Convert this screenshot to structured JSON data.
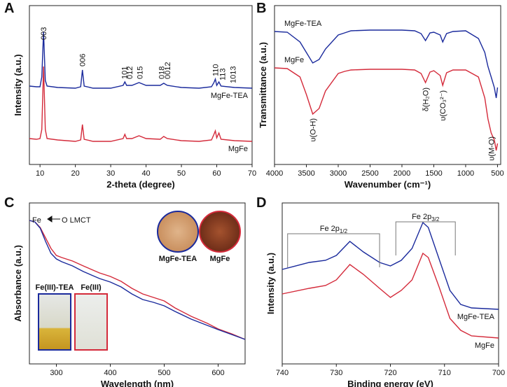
{
  "chart_data": [
    {
      "type": "line",
      "label": "A",
      "x_label": "2-theta (degree)",
      "y_label": "Intensity (a.u.)",
      "xlim": [
        7,
        70
      ],
      "ylim": [
        0,
        227
      ],
      "xticks": [
        10,
        20,
        30,
        40,
        50,
        60,
        70
      ],
      "x": [
        7,
        9,
        10,
        10.5,
        11,
        11.5,
        12,
        15,
        20,
        21.5,
        22,
        22.5,
        25,
        30,
        33.5,
        34,
        34.5,
        36,
        38,
        40,
        44,
        45,
        46,
        50,
        55,
        58.5,
        59.2,
        59.6,
        60,
        60.6,
        61.2,
        65,
        70
      ],
      "series": [
        {
          "name": "MgFe-TEA",
          "color": "#1a2a9c",
          "values": [
            112,
            111,
            111,
            125,
            190,
            120,
            112,
            110,
            109,
            111,
            135,
            112,
            109,
            109,
            113,
            118,
            113,
            113,
            117,
            113,
            113,
            116,
            113,
            110,
            109,
            111,
            117,
            122,
            113,
            118,
            112,
            110,
            109
          ]
        },
        {
          "name": "MgFe",
          "color": "#d42a3a",
          "values": [
            37,
            36,
            37,
            50,
            140,
            50,
            37,
            35,
            33,
            35,
            57,
            36,
            33,
            33,
            37,
            43,
            37,
            37,
            41,
            37,
            36,
            40,
            37,
            34,
            33,
            35,
            43,
            48,
            38,
            45,
            36,
            34,
            33
          ]
        }
      ],
      "annotations": [
        {
          "text": "003",
          "x": 11,
          "y": 178
        },
        {
          "text": "006",
          "x": 22,
          "y": 140
        },
        {
          "text": "101",
          "x": 33.8,
          "y": 122
        },
        {
          "text": "012",
          "x": 35.3,
          "y": 122
        },
        {
          "text": "015",
          "x": 38.2,
          "y": 122
        },
        {
          "text": "018",
          "x": 44.3,
          "y": 122
        },
        {
          "text": "0012",
          "x": 46,
          "y": 122
        },
        {
          "text": "110",
          "x": 59.6,
          "y": 126
        },
        {
          "text": "113",
          "x": 61.6,
          "y": 120
        },
        {
          "text": "1013",
          "x": 64.6,
          "y": 116
        }
      ]
    },
    {
      "type": "line",
      "label": "B",
      "x_label": "Wavenumber (cm⁻¹)",
      "y_label": "Transmittance (a.u.)",
      "xlim": [
        4000,
        450
      ],
      "ylim": [
        0,
        227
      ],
      "xticks": [
        4000,
        3500,
        3000,
        2500,
        2000,
        1500,
        1000,
        500
      ],
      "x": [
        4000,
        3800,
        3600,
        3500,
        3400,
        3300,
        3200,
        3000,
        2900,
        2800,
        2500,
        2000,
        1800,
        1700,
        1630,
        1560,
        1500,
        1400,
        1360,
        1300,
        1200,
        1000,
        800,
        700,
        650,
        600,
        550,
        520,
        500
      ],
      "series": [
        {
          "name": "MgFe-TEA",
          "color": "#1a2a9c",
          "values": [
            190,
            189,
            175,
            160,
            145,
            150,
            165,
            185,
            188,
            191,
            192,
            192,
            191,
            187,
            177,
            188,
            189,
            185,
            175,
            187,
            190,
            191,
            180,
            160,
            140,
            125,
            110,
            95,
            110
          ]
        },
        {
          "name": "MgFe",
          "color": "#d42a3a",
          "values": [
            138,
            137,
            125,
            100,
            72,
            80,
            105,
            130,
            133,
            135,
            136,
            136,
            135,
            130,
            117,
            132,
            134,
            127,
            113,
            131,
            135,
            135,
            125,
            95,
            65,
            45,
            35,
            20,
            30
          ]
        }
      ],
      "annotations": [
        {
          "text": "υ(O-H)",
          "x": 3400,
          "y": 66
        },
        {
          "text": "δ(H₂O)",
          "x": 1630,
          "y": 110
        },
        {
          "text": "υ(CO₃²⁻)",
          "x": 1360,
          "y": 106
        },
        {
          "text": "υ(M-O)",
          "x": 600,
          "y": 40
        }
      ]
    },
    {
      "type": "line",
      "label": "C",
      "x_label": "Wavelength (nm)",
      "y_label": "Absorbance (a.u.)",
      "xlim": [
        250,
        650
      ],
      "ylim": [
        0,
        230
      ],
      "xticks": [
        300,
        400,
        500,
        600
      ],
      "x": [
        250,
        260,
        270,
        280,
        290,
        300,
        310,
        330,
        350,
        380,
        400,
        420,
        440,
        460,
        480,
        500,
        520,
        550,
        580,
        600,
        625,
        650
      ],
      "series": [
        {
          "color": "#d42a3a",
          "values": [
            205,
            203,
            195,
            180,
            165,
            155,
            152,
            147,
            140,
            130,
            125,
            118,
            108,
            100,
            95,
            90,
            80,
            68,
            58,
            50,
            43,
            35
          ]
        },
        {
          "color": "#1a2a9c",
          "values": [
            205,
            203,
            194,
            175,
            158,
            150,
            146,
            140,
            132,
            122,
            117,
            110,
            100,
            92,
            88,
            83,
            75,
            64,
            55,
            49,
            42,
            35
          ]
        }
      ],
      "note": [
        "Fe",
        "O LMCT"
      ],
      "inset_labels": [
        "MgFe-TEA",
        "MgFe",
        "Fe(III)-TEA",
        "Fe(III)"
      ]
    },
    {
      "type": "line",
      "label": "D",
      "x_label": "Binding energy (eV)",
      "y_label": "Intensity (a.u.)",
      "xlim": [
        740,
        700
      ],
      "ylim": [
        0,
        230
      ],
      "xticks": [
        740,
        730,
        720,
        710,
        700
      ],
      "x": [
        740,
        735,
        732,
        730,
        727.5,
        725,
        722,
        720,
        718,
        716,
        714,
        713,
        711,
        709,
        707,
        705,
        700
      ],
      "series": [
        {
          "name": "MgFe-TEA",
          "color": "#1a2a9c",
          "values": [
            135,
            145,
            148,
            155,
            175,
            160,
            145,
            140,
            148,
            165,
            202,
            195,
            150,
            105,
            85,
            80,
            78
          ]
        },
        {
          "name": "MgFe",
          "color": "#d42a3a",
          "values": [
            100,
            108,
            112,
            120,
            142,
            128,
            108,
            95,
            105,
            120,
            158,
            152,
            110,
            65,
            48,
            40,
            37
          ]
        }
      ],
      "brackets": [
        {
          "text": "Fe 2p",
          "sub": "1/2",
          "x": [
            739,
            722
          ],
          "y": 186
        },
        {
          "text": "Fe 2p",
          "sub": "3/2",
          "x": [
            719,
            708
          ],
          "y": 203
        }
      ]
    }
  ]
}
